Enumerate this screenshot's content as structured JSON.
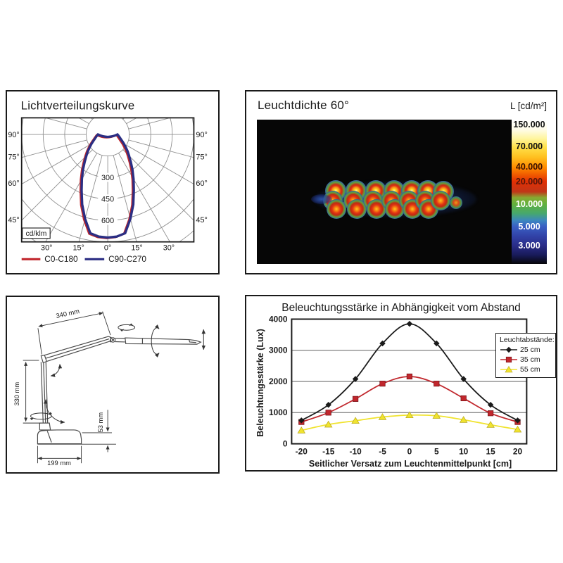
{
  "panel_ldc": {
    "unit_box": "cd/klm",
    "side_angle_labels": [
      "90°",
      "75°",
      "60°",
      "45°"
    ],
    "bottom_angle_labels": [
      "30°",
      "15°",
      "0°",
      "15°",
      "30°"
    ],
    "grid": {
      "ring_step_cd_klm": 150,
      "rings": [
        150,
        300,
        450,
        600,
        750
      ],
      "ray_step_deg": 15
    }
  },
  "panel_luminance": {
    "title": "Leuchtdichte 60°",
    "unit_label": "L [cd/m²]",
    "scale_labels": [
      "150.000",
      "70.000",
      "40.000",
      "20.000",
      "10.000",
      "5.000",
      "3.000"
    ],
    "scale_label_colors": [
      "#111111",
      "#111111",
      "#3a1000",
      "#55160a",
      "#ffffff",
      "#ffffff",
      "#ffffff"
    ],
    "scale_gradient": [
      [
        0,
        "#ffffff"
      ],
      [
        0.07,
        "#fffce8"
      ],
      [
        0.13,
        "#fff5a0"
      ],
      [
        0.19,
        "#ffe14a"
      ],
      [
        0.26,
        "#ffc020"
      ],
      [
        0.33,
        "#ff8c00"
      ],
      [
        0.385,
        "#f05800"
      ],
      [
        0.43,
        "#e12f04"
      ],
      [
        0.5,
        "#c03618"
      ],
      [
        0.54,
        "#87a832"
      ],
      [
        0.585,
        "#62b13c"
      ],
      [
        0.65,
        "#46a86e"
      ],
      [
        0.7,
        "#3c86c0"
      ],
      [
        0.74,
        "#3a60c4"
      ],
      [
        0.81,
        "#3141a6"
      ],
      [
        0.873,
        "#2a2d88"
      ],
      [
        0.94,
        "#181a58"
      ],
      [
        1,
        "#060608"
      ]
    ],
    "spots": [
      [
        112,
        101,
        "h"
      ],
      [
        108,
        115,
        "m"
      ],
      [
        113,
        127,
        "m"
      ],
      [
        141,
        101,
        "h"
      ],
      [
        137,
        115,
        "m"
      ],
      [
        142,
        127,
        "m"
      ],
      [
        169,
        101,
        "h"
      ],
      [
        165,
        115,
        "m"
      ],
      [
        170,
        127,
        "m"
      ],
      [
        195,
        101,
        "h"
      ],
      [
        191,
        115,
        "m"
      ],
      [
        196,
        127,
        "m"
      ],
      [
        220,
        101,
        "h"
      ],
      [
        216,
        115,
        "m"
      ],
      [
        221,
        127,
        "m"
      ],
      [
        243,
        101,
        "h"
      ],
      [
        239,
        115,
        "m"
      ],
      [
        244,
        127,
        "m"
      ],
      [
        265,
        102,
        "h"
      ],
      [
        261,
        115,
        "m"
      ],
      [
        283,
        118,
        "s"
      ],
      [
        92,
        113,
        "w"
      ]
    ]
  },
  "panel_drawing": {
    "arm_length": "340 mm",
    "column_height": "330 mm",
    "base_height": "53 mm",
    "base_length": "199 mm"
  },
  "chart_data": [
    {
      "type": "line",
      "title": "Beleuchtungsstärke in Abhängigkeit vom Abstand",
      "xlabel": "Seitlicher Versatz zum Leuchtenmittelpunkt [cm]",
      "ylabel": "Beleuchtungsstärke (Lux)",
      "legend_title": "Leuchtabstände:",
      "legend_position": "upper right",
      "grid": "horizontal",
      "x": [
        -20,
        -15,
        -10,
        -5,
        0,
        5,
        10,
        15,
        20
      ],
      "y_ticks": [
        "0",
        "1000",
        "2000",
        "3000",
        "4000"
      ],
      "ylim": [
        0,
        4000
      ],
      "series": [
        {
          "name": "25 cm",
          "color": "#1a1a1a",
          "marker": "diamond",
          "values": [
            750,
            1250,
            2080,
            3220,
            3850,
            3220,
            2080,
            1250,
            750
          ]
        },
        {
          "name": "35 cm",
          "color": "#c1272d",
          "marker": "square",
          "values": [
            700,
            1000,
            1440,
            1930,
            2160,
            1930,
            1460,
            980,
            700
          ]
        },
        {
          "name": "55 cm",
          "color": "#f0e32e",
          "marker": "triangle",
          "values": [
            430,
            620,
            740,
            860,
            920,
            900,
            770,
            610,
            460
          ]
        }
      ]
    },
    {
      "type": "line",
      "subtype": "polar-luminous-intensity",
      "title": "Lichtverteilungskurve",
      "unit": "cd/klm",
      "radial_ticks": [
        "300",
        "450",
        "600"
      ],
      "angles_deg": [
        0,
        5,
        10,
        15,
        20,
        25,
        30,
        35,
        40,
        45,
        50,
        55,
        60,
        65,
        70,
        75,
        80,
        85,
        90
      ],
      "series": [
        {
          "name": "C0-C180",
          "color": "#c1272d",
          "values": [
            720,
            716,
            700,
            610,
            520,
            430,
            360,
            300,
            250,
            210,
            180,
            152,
            130,
            112,
            98,
            88,
            80,
            74,
            68
          ]
        },
        {
          "name": "C90-C270",
          "color": "#2b2e83",
          "values": [
            720,
            716,
            700,
            610,
            520,
            430,
            360,
            300,
            250,
            210,
            180,
            152,
            130,
            112,
            98,
            88,
            80,
            74,
            68
          ]
        }
      ]
    }
  ]
}
